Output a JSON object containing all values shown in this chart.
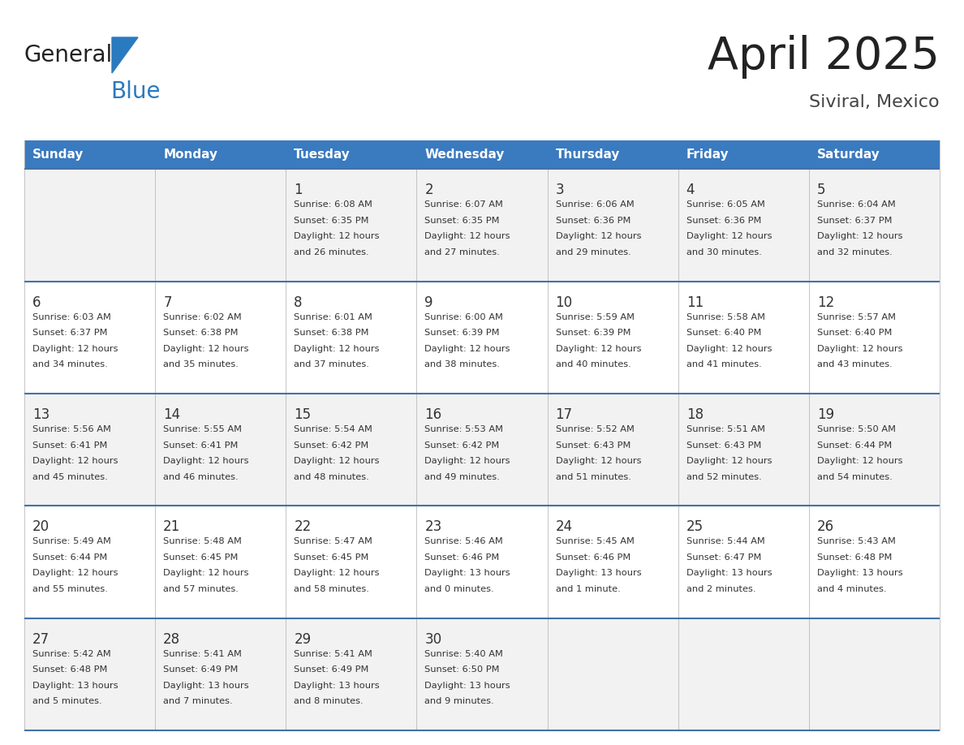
{
  "title": "April 2025",
  "subtitle": "Siviral, Mexico",
  "header_color": "#3a7abf",
  "header_text_color": "#ffffff",
  "days_of_week": [
    "Sunday",
    "Monday",
    "Tuesday",
    "Wednesday",
    "Thursday",
    "Friday",
    "Saturday"
  ],
  "row_bg_even": "#f2f2f2",
  "row_bg_odd": "#ffffff",
  "day_number_color": "#333333",
  "text_color": "#333333",
  "divider_color": "#4472a8",
  "logo_general_color": "#222222",
  "logo_blue_color": "#2a7abf",
  "logo_triangle_color": "#2a7abf",
  "title_color": "#222222",
  "subtitle_color": "#444444",
  "calendar_data": [
    [
      {
        "day": "",
        "lines": []
      },
      {
        "day": "",
        "lines": []
      },
      {
        "day": "1",
        "lines": [
          "Sunrise: 6:08 AM",
          "Sunset: 6:35 PM",
          "Daylight: 12 hours",
          "and 26 minutes."
        ]
      },
      {
        "day": "2",
        "lines": [
          "Sunrise: 6:07 AM",
          "Sunset: 6:35 PM",
          "Daylight: 12 hours",
          "and 27 minutes."
        ]
      },
      {
        "day": "3",
        "lines": [
          "Sunrise: 6:06 AM",
          "Sunset: 6:36 PM",
          "Daylight: 12 hours",
          "and 29 minutes."
        ]
      },
      {
        "day": "4",
        "lines": [
          "Sunrise: 6:05 AM",
          "Sunset: 6:36 PM",
          "Daylight: 12 hours",
          "and 30 minutes."
        ]
      },
      {
        "day": "5",
        "lines": [
          "Sunrise: 6:04 AM",
          "Sunset: 6:37 PM",
          "Daylight: 12 hours",
          "and 32 minutes."
        ]
      }
    ],
    [
      {
        "day": "6",
        "lines": [
          "Sunrise: 6:03 AM",
          "Sunset: 6:37 PM",
          "Daylight: 12 hours",
          "and 34 minutes."
        ]
      },
      {
        "day": "7",
        "lines": [
          "Sunrise: 6:02 AM",
          "Sunset: 6:38 PM",
          "Daylight: 12 hours",
          "and 35 minutes."
        ]
      },
      {
        "day": "8",
        "lines": [
          "Sunrise: 6:01 AM",
          "Sunset: 6:38 PM",
          "Daylight: 12 hours",
          "and 37 minutes."
        ]
      },
      {
        "day": "9",
        "lines": [
          "Sunrise: 6:00 AM",
          "Sunset: 6:39 PM",
          "Daylight: 12 hours",
          "and 38 minutes."
        ]
      },
      {
        "day": "10",
        "lines": [
          "Sunrise: 5:59 AM",
          "Sunset: 6:39 PM",
          "Daylight: 12 hours",
          "and 40 minutes."
        ]
      },
      {
        "day": "11",
        "lines": [
          "Sunrise: 5:58 AM",
          "Sunset: 6:40 PM",
          "Daylight: 12 hours",
          "and 41 minutes."
        ]
      },
      {
        "day": "12",
        "lines": [
          "Sunrise: 5:57 AM",
          "Sunset: 6:40 PM",
          "Daylight: 12 hours",
          "and 43 minutes."
        ]
      }
    ],
    [
      {
        "day": "13",
        "lines": [
          "Sunrise: 5:56 AM",
          "Sunset: 6:41 PM",
          "Daylight: 12 hours",
          "and 45 minutes."
        ]
      },
      {
        "day": "14",
        "lines": [
          "Sunrise: 5:55 AM",
          "Sunset: 6:41 PM",
          "Daylight: 12 hours",
          "and 46 minutes."
        ]
      },
      {
        "day": "15",
        "lines": [
          "Sunrise: 5:54 AM",
          "Sunset: 6:42 PM",
          "Daylight: 12 hours",
          "and 48 minutes."
        ]
      },
      {
        "day": "16",
        "lines": [
          "Sunrise: 5:53 AM",
          "Sunset: 6:42 PM",
          "Daylight: 12 hours",
          "and 49 minutes."
        ]
      },
      {
        "day": "17",
        "lines": [
          "Sunrise: 5:52 AM",
          "Sunset: 6:43 PM",
          "Daylight: 12 hours",
          "and 51 minutes."
        ]
      },
      {
        "day": "18",
        "lines": [
          "Sunrise: 5:51 AM",
          "Sunset: 6:43 PM",
          "Daylight: 12 hours",
          "and 52 minutes."
        ]
      },
      {
        "day": "19",
        "lines": [
          "Sunrise: 5:50 AM",
          "Sunset: 6:44 PM",
          "Daylight: 12 hours",
          "and 54 minutes."
        ]
      }
    ],
    [
      {
        "day": "20",
        "lines": [
          "Sunrise: 5:49 AM",
          "Sunset: 6:44 PM",
          "Daylight: 12 hours",
          "and 55 minutes."
        ]
      },
      {
        "day": "21",
        "lines": [
          "Sunrise: 5:48 AM",
          "Sunset: 6:45 PM",
          "Daylight: 12 hours",
          "and 57 minutes."
        ]
      },
      {
        "day": "22",
        "lines": [
          "Sunrise: 5:47 AM",
          "Sunset: 6:45 PM",
          "Daylight: 12 hours",
          "and 58 minutes."
        ]
      },
      {
        "day": "23",
        "lines": [
          "Sunrise: 5:46 AM",
          "Sunset: 6:46 PM",
          "Daylight: 13 hours",
          "and 0 minutes."
        ]
      },
      {
        "day": "24",
        "lines": [
          "Sunrise: 5:45 AM",
          "Sunset: 6:46 PM",
          "Daylight: 13 hours",
          "and 1 minute."
        ]
      },
      {
        "day": "25",
        "lines": [
          "Sunrise: 5:44 AM",
          "Sunset: 6:47 PM",
          "Daylight: 13 hours",
          "and 2 minutes."
        ]
      },
      {
        "day": "26",
        "lines": [
          "Sunrise: 5:43 AM",
          "Sunset: 6:48 PM",
          "Daylight: 13 hours",
          "and 4 minutes."
        ]
      }
    ],
    [
      {
        "day": "27",
        "lines": [
          "Sunrise: 5:42 AM",
          "Sunset: 6:48 PM",
          "Daylight: 13 hours",
          "and 5 minutes."
        ]
      },
      {
        "day": "28",
        "lines": [
          "Sunrise: 5:41 AM",
          "Sunset: 6:49 PM",
          "Daylight: 13 hours",
          "and 7 minutes."
        ]
      },
      {
        "day": "29",
        "lines": [
          "Sunrise: 5:41 AM",
          "Sunset: 6:49 PM",
          "Daylight: 13 hours",
          "and 8 minutes."
        ]
      },
      {
        "day": "30",
        "lines": [
          "Sunrise: 5:40 AM",
          "Sunset: 6:50 PM",
          "Daylight: 13 hours",
          "and 9 minutes."
        ]
      },
      {
        "day": "",
        "lines": []
      },
      {
        "day": "",
        "lines": []
      },
      {
        "day": "",
        "lines": []
      }
    ]
  ]
}
